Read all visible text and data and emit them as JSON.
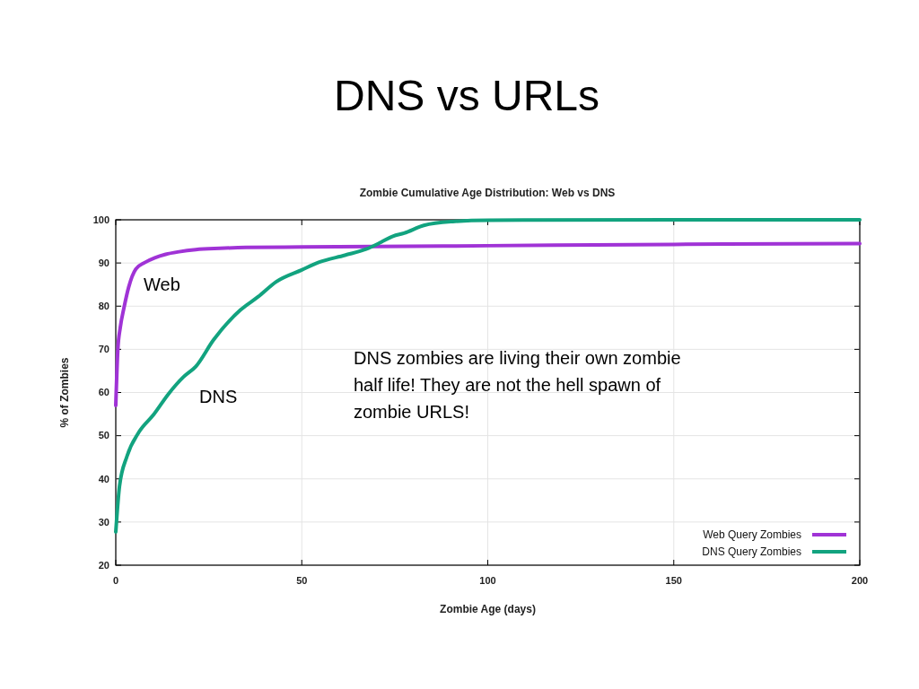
{
  "chart_data": {
    "type": "line",
    "title": "DNS vs URLs",
    "subtitle": "Zombie Cumulative Age Distribution: Web vs DNS",
    "xlabel": "Zombie Age (days)",
    "ylabel": "% of Zombies",
    "xlim": [
      0,
      200
    ],
    "xticks": [
      0,
      50,
      100,
      150,
      200
    ],
    "ylim": [
      20,
      100
    ],
    "yticks": [
      20,
      30,
      40,
      50,
      60,
      70,
      80,
      90,
      100
    ],
    "grid": true,
    "legend": "bottom right",
    "annotations": [
      "Web",
      "DNS",
      "DNS zombies are living their own zombie half life! They are not the hell spawn of zombie URLS!"
    ],
    "series": [
      {
        "name": "Web Query Zombies",
        "color": "#a033d6",
        "x": [
          0,
          0.56,
          1.2,
          2.2,
          3.5,
          5.4,
          7.8,
          10.5,
          13.4,
          17,
          21.5,
          28,
          35,
          50,
          70,
          100,
          150,
          200
        ],
        "values": [
          57,
          70,
          75,
          79.6,
          84.5,
          88.6,
          90.1,
          91.2,
          92,
          92.6,
          93.1,
          93.4,
          93.6,
          93.7,
          93.8,
          94,
          94.3,
          94.5
        ]
      },
      {
        "name": "DNS Query Zombies",
        "color": "#12a37f",
        "x": [
          0,
          1,
          3,
          6.2,
          10.2,
          14.2,
          18.2,
          21.5,
          26.3,
          33.5,
          38.3,
          43.2,
          50,
          54.4,
          61.6,
          67.3,
          71.3,
          74.5,
          77.5,
          82.8,
          90.6,
          100,
          150,
          200
        ],
        "values": [
          27.7,
          38.3,
          45.2,
          50.8,
          54.9,
          59.7,
          63.6,
          66,
          72.2,
          79.1,
          82.2,
          85.7,
          88.4,
          90.1,
          91.8,
          93.2,
          94.8,
          96.2,
          96.9,
          98.7,
          99.6,
          99.9,
          100,
          100
        ]
      }
    ]
  }
}
